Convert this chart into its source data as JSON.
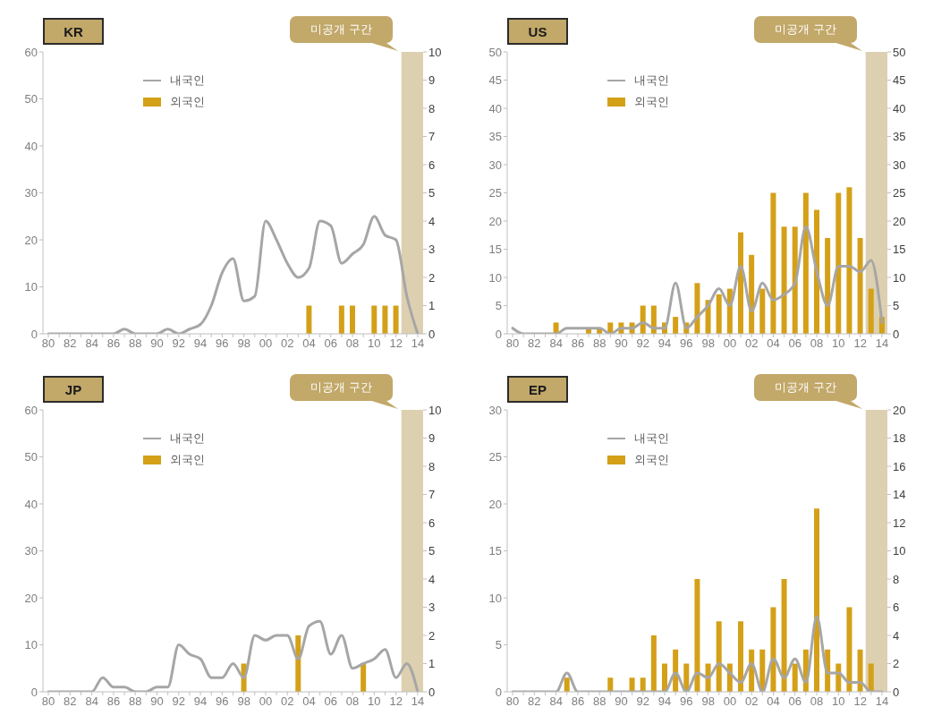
{
  "chart_data": [
    {
      "type": "bar",
      "title": "KR",
      "categories": [
        "80",
        null,
        "82",
        null,
        "84",
        null,
        "86",
        null,
        "88",
        null,
        "90",
        null,
        "92",
        null,
        "94",
        null,
        "96",
        null,
        "98",
        null,
        "00",
        null,
        "02",
        null,
        "04",
        null,
        "06",
        null,
        "08",
        null,
        "10",
        null,
        "12",
        null,
        "14"
      ],
      "series": [
        {
          "name": "내국인",
          "type": "line",
          "color": "#a6a6a6",
          "values": [
            0,
            0,
            0,
            0,
            0,
            0,
            0,
            1,
            0,
            0,
            0,
            1,
            0,
            1,
            2,
            6,
            13,
            16,
            7,
            8,
            24,
            20,
            15,
            12,
            14,
            24,
            23,
            15,
            17,
            19,
            25,
            21,
            20,
            8,
            0
          ]
        },
        {
          "name": "외국인",
          "axis": "y2",
          "color": "#d4a017",
          "values": [
            0,
            0,
            0,
            0,
            0,
            0,
            0,
            0,
            0,
            0,
            0,
            0,
            0,
            0,
            0,
            0,
            0,
            0,
            0,
            0,
            0,
            0,
            0,
            0,
            1,
            0,
            0,
            1,
            1,
            0,
            1,
            1,
            1,
            0,
            0
          ]
        }
      ],
      "ylim": [
        0,
        60
      ],
      "yticks": [
        0,
        10,
        20,
        30,
        40,
        50,
        60
      ],
      "y2lim": [
        0,
        10
      ],
      "y2ticks": [
        0,
        1,
        2,
        3,
        4,
        5,
        6,
        7,
        8,
        9,
        10
      ],
      "bands": [
        {
          "axis": "x",
          "from": "12",
          "to": "14",
          "label": "미공개 구간",
          "color": "#ddd0b0"
        }
      ],
      "legend": "top left",
      "marker": "none",
      "grid": false
    },
    {
      "type": "bar",
      "title": "US",
      "categories": [
        "80",
        null,
        "82",
        null,
        "84",
        null,
        "86",
        null,
        "88",
        null,
        "90",
        null,
        "92",
        null,
        "94",
        null,
        "96",
        null,
        "98",
        null,
        "00",
        null,
        "02",
        null,
        "04",
        null,
        "06",
        null,
        "08",
        null,
        "10",
        null,
        "12",
        null,
        "14"
      ],
      "series": [
        {
          "name": "내국인",
          "type": "line",
          "color": "#a6a6a6",
          "values": [
            1,
            0,
            0,
            0,
            0,
            1,
            1,
            1,
            1,
            0,
            1,
            1,
            2,
            1,
            1,
            9,
            1,
            3,
            5,
            8,
            5,
            12,
            4,
            9,
            6,
            7,
            9,
            19,
            11,
            5,
            12,
            12,
            11,
            13,
            2
          ]
        },
        {
          "name": "외국인",
          "axis": "y2",
          "color": "#d4a017",
          "values": [
            0,
            0,
            0,
            0,
            2,
            0,
            0,
            1,
            1,
            2,
            2,
            2,
            5,
            5,
            2,
            3,
            2,
            9,
            6,
            7,
            8,
            18,
            14,
            8,
            25,
            19,
            19,
            25,
            22,
            17,
            25,
            26,
            17,
            8,
            3
          ]
        }
      ],
      "ylim": [
        0,
        50
      ],
      "yticks": [
        0,
        5,
        10,
        15,
        20,
        25,
        30,
        35,
        40,
        45,
        50
      ],
      "y2lim": [
        0,
        50
      ],
      "y2ticks": [
        0,
        5,
        10,
        15,
        20,
        25,
        30,
        35,
        40,
        45,
        50
      ],
      "bands": [
        {
          "axis": "x",
          "from": "12",
          "to": "14",
          "label": "미공개 구간",
          "color": "#ddd0b0"
        }
      ],
      "legend": "top left",
      "marker": "none",
      "grid": false
    },
    {
      "type": "bar",
      "title": "JP",
      "categories": [
        "80",
        null,
        "82",
        null,
        "84",
        null,
        "86",
        null,
        "88",
        null,
        "90",
        null,
        "92",
        null,
        "94",
        null,
        "96",
        null,
        "98",
        null,
        "00",
        null,
        "02",
        null,
        "04",
        null,
        "06",
        null,
        "08",
        null,
        "10",
        null,
        "12",
        null,
        "14"
      ],
      "series": [
        {
          "name": "내국인",
          "type": "line",
          "color": "#a6a6a6",
          "values": [
            0,
            0,
            0,
            0,
            0,
            3,
            1,
            1,
            0,
            0,
            1,
            1,
            10,
            8,
            7,
            3,
            3,
            6,
            3,
            12,
            11,
            12,
            12,
            7,
            14,
            15,
            8,
            12,
            5,
            6,
            7,
            9,
            3,
            6,
            0
          ]
        },
        {
          "name": "외국인",
          "axis": "y2",
          "color": "#d4a017",
          "values": [
            0,
            0,
            0,
            0,
            0,
            0,
            0,
            0,
            0,
            0,
            0,
            0,
            0,
            0,
            0,
            0,
            0,
            0,
            1,
            0,
            0,
            0,
            0,
            2,
            0,
            0,
            0,
            0,
            0,
            1,
            0,
            0,
            0,
            0,
            0
          ]
        }
      ],
      "ylim": [
        0,
        60
      ],
      "yticks": [
        0,
        10,
        20,
        30,
        40,
        50,
        60
      ],
      "y2lim": [
        0,
        10
      ],
      "y2ticks": [
        0,
        1,
        2,
        3,
        4,
        5,
        6,
        7,
        8,
        9,
        10
      ],
      "bands": [
        {
          "axis": "x",
          "from": "12",
          "to": "14",
          "label": "미공개 구간",
          "color": "#ddd0b0"
        }
      ],
      "legend": "top left",
      "marker": "none",
      "grid": false
    },
    {
      "type": "bar",
      "title": "EP",
      "categories": [
        "80",
        null,
        "82",
        null,
        "84",
        null,
        "86",
        null,
        "88",
        null,
        "90",
        null,
        "92",
        null,
        "94",
        null,
        "96",
        null,
        "98",
        null,
        "00",
        null,
        "02",
        null,
        "04",
        null,
        "06",
        null,
        "08",
        null,
        "10",
        null,
        "12",
        null,
        "14"
      ],
      "series": [
        {
          "name": "내국인",
          "type": "line",
          "color": "#a6a6a6",
          "values": [
            0,
            0,
            0,
            0,
            0,
            2,
            0,
            0,
            0,
            0,
            0,
            0,
            0,
            0,
            0,
            2,
            0,
            2,
            1.5,
            3,
            2,
            1,
            3,
            0,
            3.5,
            1.5,
            3.5,
            1,
            8,
            2,
            2,
            1,
            1,
            0,
            0
          ]
        },
        {
          "name": "외국인",
          "axis": "y2",
          "color": "#d4a017",
          "values": [
            0,
            0,
            0,
            0,
            0,
            1,
            0,
            0,
            0,
            1,
            0,
            1,
            1,
            4,
            2,
            3,
            2,
            8,
            2,
            5,
            2,
            5,
            3,
            3,
            6,
            8,
            2,
            3,
            13,
            3,
            2,
            6,
            3,
            2,
            0
          ]
        }
      ],
      "ylim": [
        0,
        30
      ],
      "yticks": [
        0,
        5,
        10,
        15,
        20,
        25,
        30
      ],
      "y2lim": [
        0,
        20
      ],
      "y2ticks": [
        0,
        2,
        4,
        6,
        8,
        10,
        12,
        14,
        16,
        18,
        20
      ],
      "bands": [
        {
          "axis": "x",
          "from": "12",
          "to": "14",
          "label": "미공개 구간",
          "color": "#ddd0b0"
        }
      ],
      "legend": "top left",
      "marker": "none",
      "grid": false
    }
  ]
}
